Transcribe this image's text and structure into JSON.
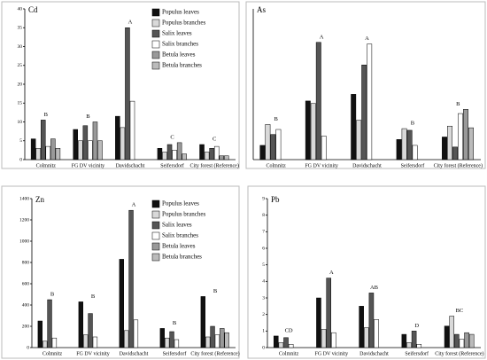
{
  "chart_data": [
    {
      "type": "bar",
      "title": "Cd",
      "categories": [
        "Colmnitz",
        "FG DV vicinity",
        "Davidschacht",
        "Seifersdorf",
        "City forest (Reference)"
      ],
      "ylim": [
        0,
        40
      ],
      "yticks": [
        0,
        5,
        10,
        15,
        20,
        25,
        30,
        35,
        40
      ],
      "group_labels": [
        "B",
        "B",
        "A",
        "C",
        "C"
      ],
      "legend": true,
      "series": [
        {
          "name": "Populus leaves",
          "color": "#111111",
          "values": [
            5.5,
            8,
            11.5,
            3,
            4
          ]
        },
        {
          "name": "Populus branches",
          "color": "#d9d9d9",
          "values": [
            3,
            5,
            8.5,
            2,
            2
          ]
        },
        {
          "name": "Salix leaves",
          "color": "#555555",
          "values": [
            10.5,
            9,
            35,
            4,
            3
          ]
        },
        {
          "name": "Salix branches",
          "color": "#ffffff",
          "values": [
            3.5,
            5,
            15.5,
            2.5,
            3.5
          ]
        },
        {
          "name": "Betula leaves",
          "color": "#999999",
          "values": [
            5.5,
            10,
            null,
            4.5,
            1
          ]
        },
        {
          "name": "Betula branches",
          "color": "#bbbbbb",
          "values": [
            3,
            5,
            null,
            1.5,
            1
          ]
        }
      ]
    },
    {
      "type": "bar",
      "title": "As",
      "categories": [
        "Colmnitz",
        "FG DV vicinity",
        "Davidschacht",
        "Seifersdorf",
        "City forest (Reference)"
      ],
      "ylim": [
        0,
        1.8
      ],
      "group_labels": [
        "B",
        "A",
        "A",
        "B",
        "B"
      ],
      "legend": false,
      "series": [
        {
          "color": "#111111",
          "values": [
            0.17,
            0.7,
            0.78,
            0.24,
            0.27
          ]
        },
        {
          "color": "#d9d9d9",
          "values": [
            0.42,
            0.67,
            0.47,
            0.37,
            0.4
          ]
        },
        {
          "color": "#555555",
          "values": [
            0.3,
            1.4,
            1.13,
            0.35,
            0.15
          ]
        },
        {
          "color": "#ffffff",
          "values": [
            0.36,
            0.28,
            1.38,
            0.17,
            0.55
          ]
        },
        {
          "color": "#999999",
          "values": [
            null,
            null,
            null,
            null,
            0.6
          ]
        },
        {
          "color": "#bbbbbb",
          "values": [
            null,
            null,
            null,
            null,
            0.38
          ]
        }
      ]
    },
    {
      "type": "bar",
      "title": "Zn",
      "categories": [
        "Colmnitz",
        "FG DV vicinity",
        "Davidschacht",
        "Seifersdorf",
        "City forest (Reference)"
      ],
      "ylim": [
        0,
        1400
      ],
      "yticks": [
        0,
        200,
        400,
        600,
        800,
        1000,
        1200,
        1400
      ],
      "group_labels": [
        "B",
        "B",
        "A",
        "B",
        "B"
      ],
      "legend": true,
      "series": [
        {
          "name": "Populus leaves",
          "color": "#111111",
          "values": [
            250,
            430,
            830,
            180,
            480
          ]
        },
        {
          "name": "Populus branches",
          "color": "#d9d9d9",
          "values": [
            60,
            120,
            160,
            90,
            100
          ]
        },
        {
          "name": "Salix leaves",
          "color": "#555555",
          "values": [
            450,
            320,
            1290,
            150,
            200
          ]
        },
        {
          "name": "Salix branches",
          "color": "#ffffff",
          "values": [
            90,
            100,
            260,
            75,
            120
          ]
        },
        {
          "name": "Betula leaves",
          "color": "#999999",
          "values": [
            null,
            null,
            null,
            null,
            180
          ]
        },
        {
          "name": "Betula branches",
          "color": "#bbbbbb",
          "values": [
            null,
            null,
            null,
            null,
            140
          ]
        }
      ]
    },
    {
      "type": "bar",
      "title": "Pb",
      "categories": [
        "Colmnitz",
        "FG DV vicinity",
        "Davidschacht",
        "Seifersdorf",
        "City forest (Reference)"
      ],
      "ylim": [
        0,
        9
      ],
      "yticks": [
        0,
        1,
        2,
        3,
        4,
        5,
        6,
        7,
        8,
        9
      ],
      "group_labels": [
        "CD",
        "A",
        "AB",
        "D",
        "BC"
      ],
      "legend": false,
      "series": [
        {
          "color": "#111111",
          "values": [
            0.7,
            3,
            2.5,
            0.8,
            1.3
          ]
        },
        {
          "color": "#d9d9d9",
          "values": [
            0.3,
            1.1,
            1.2,
            0.3,
            1.9
          ]
        },
        {
          "color": "#555555",
          "values": [
            0.6,
            4.2,
            3.3,
            1,
            0.8
          ]
        },
        {
          "color": "#ffffff",
          "values": [
            0.2,
            0.9,
            1.7,
            0.2,
            0.5
          ]
        },
        {
          "color": "#999999",
          "values": [
            null,
            null,
            null,
            null,
            0.9
          ]
        },
        {
          "color": "#bbbbbb",
          "values": [
            null,
            null,
            null,
            null,
            0.8
          ]
        }
      ]
    }
  ]
}
